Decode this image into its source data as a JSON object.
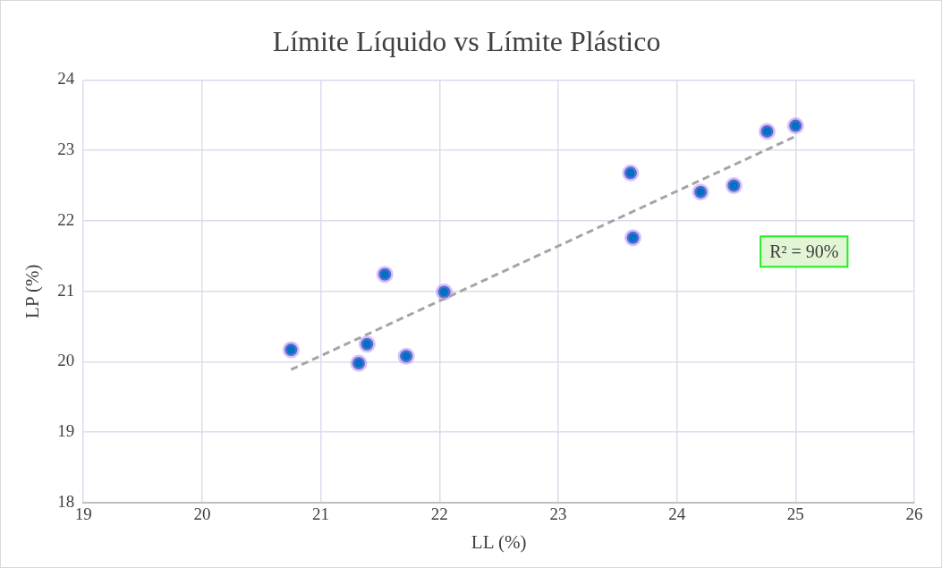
{
  "chart_data": {
    "type": "scatter",
    "title": "Límite Líquido vs Límite Plástico",
    "xlabel": "LL (%)",
    "ylabel": "LP (%)",
    "xlim": [
      19,
      26
    ],
    "xticks": [
      19,
      20,
      21,
      22,
      23,
      24,
      25,
      26
    ],
    "ylim": [
      18,
      24
    ],
    "yticks": [
      18,
      19,
      20,
      21,
      22,
      23,
      24
    ],
    "grid": true,
    "legend": false,
    "series": [
      {
        "marker": "circle",
        "color": "#0070c0",
        "x": [
          20.75,
          21.32,
          21.39,
          21.54,
          21.72,
          22.04,
          23.61,
          23.63,
          24.2,
          24.48,
          24.76,
          25.0
        ],
        "values": [
          20.17,
          19.98,
          20.25,
          21.24,
          20.08,
          20.99,
          22.68,
          21.76,
          22.41,
          22.5,
          23.27,
          23.35
        ]
      },
      {
        "type": "line",
        "marker": "none",
        "color": "#a5a5a5",
        "line_style": "dashed",
        "x": [
          20.75,
          25.0
        ],
        "values": [
          19.89,
          23.2
        ]
      }
    ],
    "annotations": [
      "R² = 90%"
    ]
  }
}
